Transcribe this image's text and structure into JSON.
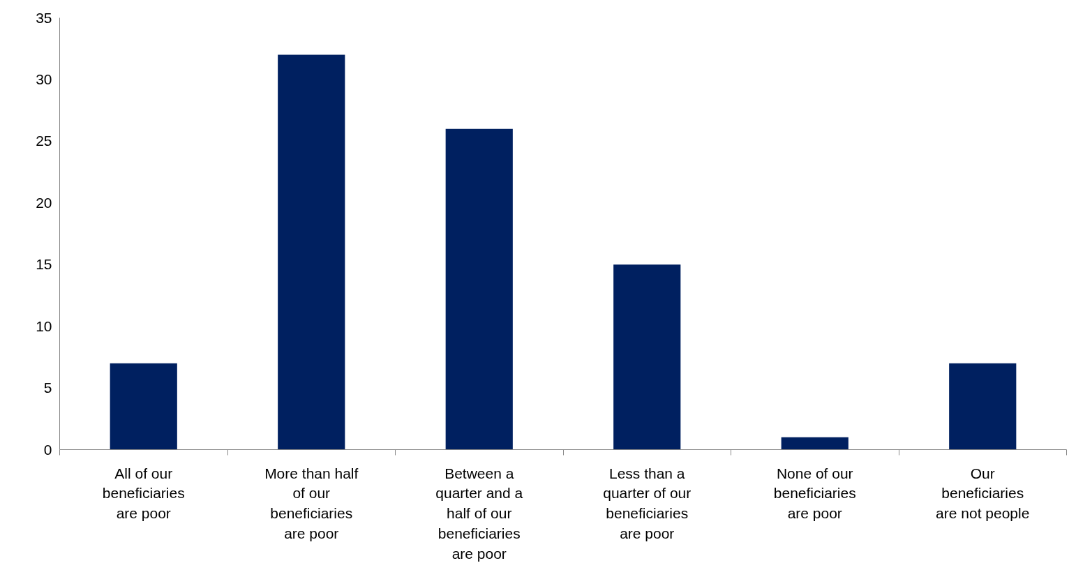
{
  "chart_data": {
    "type": "bar",
    "categories": [
      "All of our beneficiaries are poor",
      "More than half of our beneficiaries are poor",
      "Between a quarter and a half of our beneficiaries are poor",
      "Less than a quarter of our beneficiaries are poor",
      "None of our beneficiaries are poor",
      "Our beneficiaries are not people"
    ],
    "values": [
      7,
      32,
      26,
      15,
      1,
      7
    ],
    "color": "#002060",
    "ylim": [
      0,
      35
    ],
    "yticks": [
      0,
      5,
      10,
      15,
      20,
      25,
      30,
      35
    ],
    "grid": false
  }
}
